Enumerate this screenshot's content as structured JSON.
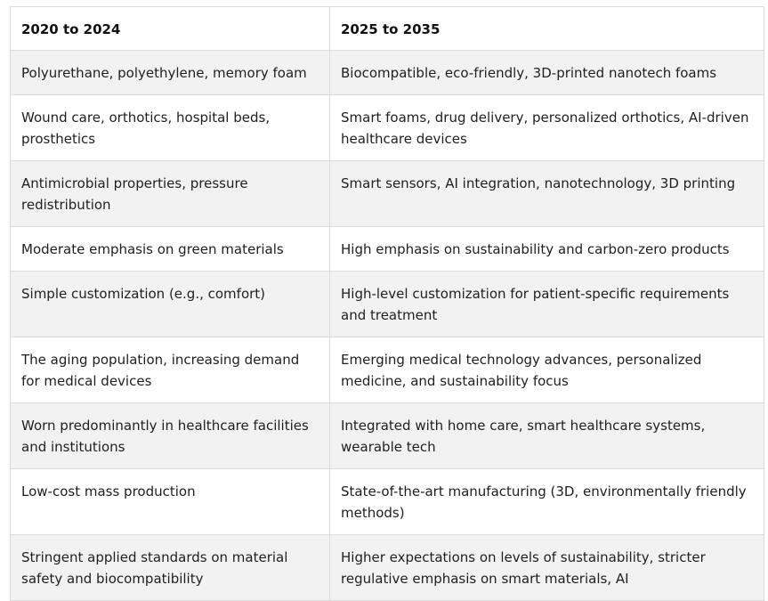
{
  "table": {
    "headers": [
      "2020 to 2024",
      "2025 to 2035"
    ],
    "rows": [
      [
        "Polyurethane, polyethylene, memory foam",
        "Biocompatible, eco-friendly, 3D-printed nanotech foams"
      ],
      [
        "Wound care, orthotics, hospital beds, prosthetics",
        "Smart foams, drug delivery, personalized orthotics, AI-driven healthcare devices"
      ],
      [
        "Antimicrobial properties, pressure redistribution",
        "Smart sensors, AI integration, nanotechnology, 3D printing"
      ],
      [
        "Moderate emphasis on green materials",
        "High emphasis on sustainability and carbon-zero products"
      ],
      [
        "Simple customization (e.g., comfort)",
        "High-level customization for patient-specific requirements and treatment"
      ],
      [
        "The aging population, increasing demand for medical devices",
        "Emerging medical technology advances, personalized medicine, and sustainability focus"
      ],
      [
        "Worn predominantly in healthcare facilities and institutions",
        "Integrated with home care, smart healthcare systems, wearable tech"
      ],
      [
        "Low-cost mass production",
        "State-of-the-art manufacturing (3D, environmentally friendly methods)"
      ],
      [
        "Stringent applied standards on material safety and biocompatibility",
        "Higher expectations on levels of sustainability, stricter regulative emphasis on smart materials, AI"
      ]
    ]
  }
}
